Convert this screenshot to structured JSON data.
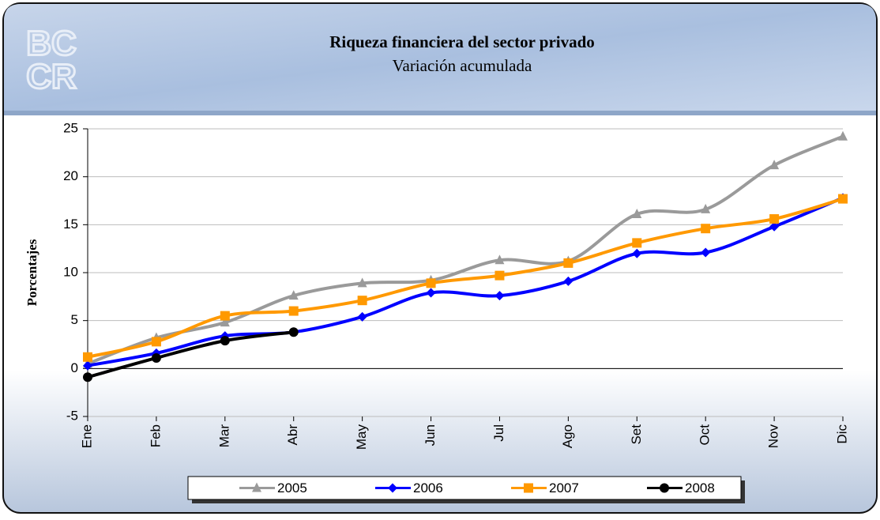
{
  "logo": [
    "BC",
    "CR"
  ],
  "chart_data": {
    "type": "line",
    "title": "Riqueza financiera del sector privado",
    "subtitle": "Variación acumulada",
    "y_label": "Porcentajes",
    "categories": [
      "Ene",
      "Feb",
      "Mar",
      "Abr",
      "May",
      "Jun",
      "Jul",
      "Ago",
      "Set",
      "Oct",
      "Nov",
      "Dic"
    ],
    "series": [
      {
        "name": "2005",
        "color": "#9a9a9a",
        "marker": "triangle",
        "values": [
          0.5,
          3.2,
          4.8,
          7.6,
          8.9,
          9.2,
          11.3,
          11.2,
          16.1,
          16.6,
          21.2,
          24.2
        ]
      },
      {
        "name": "2006",
        "color": "#0000ff",
        "marker": "diamond",
        "values": [
          0.3,
          1.6,
          3.4,
          3.8,
          5.4,
          7.9,
          7.6,
          9.1,
          12.0,
          12.1,
          14.8,
          17.8
        ]
      },
      {
        "name": "2007",
        "color": "#ff9900",
        "marker": "square",
        "values": [
          1.2,
          2.8,
          5.5,
          6.0,
          7.1,
          8.9,
          9.7,
          11.0,
          13.1,
          14.6,
          15.6,
          17.7
        ]
      },
      {
        "name": "2008",
        "color": "#000000",
        "marker": "circle",
        "values": [
          -0.9,
          1.1,
          2.9,
          3.8,
          null,
          null,
          null,
          null,
          null,
          null,
          null,
          null
        ]
      }
    ],
    "ylim": [
      -5,
      25
    ],
    "yticks": [
      -5,
      0,
      5,
      10,
      15,
      20,
      25
    ],
    "grid": true,
    "smooth": true,
    "legend": "bottom"
  }
}
